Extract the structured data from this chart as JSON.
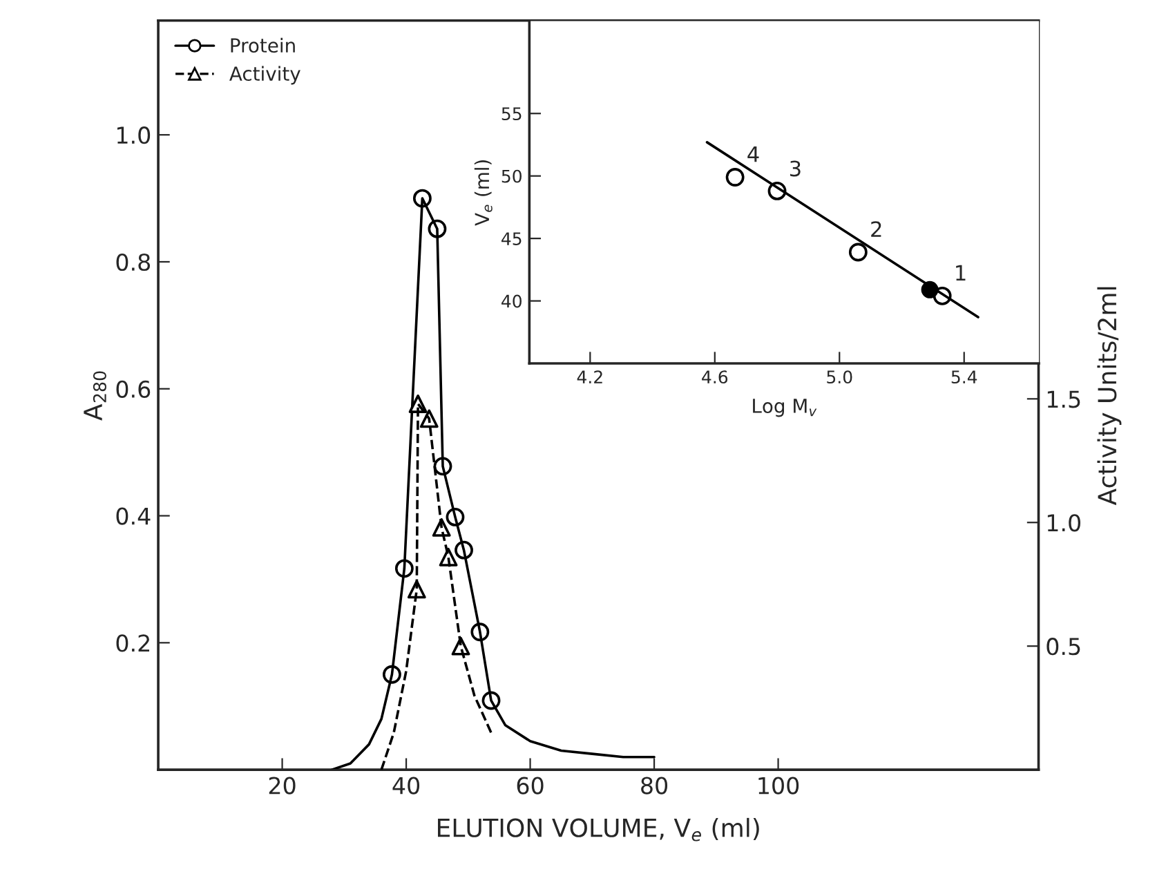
{
  "chart_data": [
    {
      "type": "line",
      "xlabel": "ELUTION VOLUME, V$_{e}$ (ml)",
      "ylabel": "A$_{280}$",
      "y2label": "Activity Units/2ml",
      "xlim": [
        0,
        142
      ],
      "xticks": [
        20,
        40,
        60,
        80,
        100
      ],
      "ylim": [
        0,
        1.18
      ],
      "yticks": [
        0.2,
        0.4,
        0.6,
        0.8,
        {
          "value": 1.0,
          "label": "1.0"
        }
      ],
      "y2lim": [
        0,
        3.03
      ],
      "y2ticks": [
        {
          "value": 0.5,
          "label": "0.5"
        },
        {
          "value": 1.0,
          "label": "1.0"
        },
        {
          "value": 1.5,
          "label": "1.5"
        }
      ],
      "legend": "top left",
      "grid": false,
      "series": [
        {
          "name": "Protein",
          "type": "scatter",
          "marker": "circle",
          "line_style": "solid",
          "color": "#000000",
          "x": [
            37.7,
            39.7,
            42.6,
            45.0,
            45.9,
            47.9,
            49.3,
            51.9,
            53.7
          ],
          "values": [
            0.15,
            0.317,
            0.9,
            0.852,
            0.478,
            0.398,
            0.346,
            0.217,
            0.109
          ]
        },
        {
          "marker": "none",
          "line_style": "solid",
          "color": "#000000",
          "x": [
            28,
            31,
            34,
            36,
            37.7,
            39.7,
            42.6,
            45.0,
            45.9,
            47.9,
            49.3,
            51.9,
            53.7,
            56,
            60,
            65,
            70,
            75,
            80
          ],
          "values": [
            0,
            0.01,
            0.04,
            0.08,
            0.15,
            0.317,
            0.9,
            0.852,
            0.478,
            0.398,
            0.346,
            0.217,
            0.109,
            0.07,
            0.045,
            0.03,
            0.025,
            0.02,
            0.02
          ]
        },
        {
          "name": "Activity",
          "type": "scatter",
          "axis": "y2",
          "marker": "triangle",
          "line_style": "dashed",
          "color": "#000000",
          "x": [
            41.7,
            41.9,
            43.7,
            45.7,
            46.8,
            48.8
          ],
          "values": [
            0.73,
            1.48,
            1.42,
            0.98,
            0.86,
            0.5
          ]
        },
        {
          "axis": "y2",
          "marker": "none",
          "line_style": "dashed",
          "color": "#000000",
          "x": [
            36,
            38,
            40,
            41.7,
            41.9,
            43.7,
            45.7,
            46.8,
            48.8,
            51,
            53.7
          ],
          "values": [
            0,
            0.15,
            0.4,
            0.73,
            1.48,
            1.42,
            0.98,
            0.86,
            0.5,
            0.3,
            0.15
          ]
        }
      ]
    },
    {
      "type": "scatter",
      "xlabel": "Log M$_{v}$",
      "ylabel": "V$_{e}$ (ml)",
      "xlim": [
        4.005,
        5.64
      ],
      "xticks": [
        4.2,
        4.6,
        {
          "value": 5.0,
          "label": "5.0"
        },
        5.4
      ],
      "ylim": [
        35,
        62.4
      ],
      "yticks": [
        40,
        45,
        50,
        55
      ],
      "grid": false,
      "series": [
        {
          "marker": "circle",
          "color": "#000000",
          "x": [
            4.665,
            4.8,
            5.06,
            5.33
          ],
          "values": [
            49.9,
            48.8,
            43.9,
            40.4
          ]
        },
        {
          "type": "line",
          "marker": "circle",
          "color": "#000000",
          "x": [
            5.29
          ],
          "values": [
            40.9
          ]
        },
        {
          "type": "line",
          "marker": "none",
          "line_style": "solid",
          "color": "#000000",
          "x": [
            4.575,
            5.445
          ],
          "values": [
            52.7,
            38.7
          ]
        }
      ],
      "annotations": [
        {
          "text": "4",
          "x": 4.665,
          "y": 49.9
        },
        {
          "text": "3",
          "x": 4.8,
          "y": 48.75
        },
        {
          "text": "2",
          "x": 5.06,
          "y": 43.9
        },
        {
          "text": "1",
          "x": 5.33,
          "y": 40.4
        }
      ]
    }
  ]
}
